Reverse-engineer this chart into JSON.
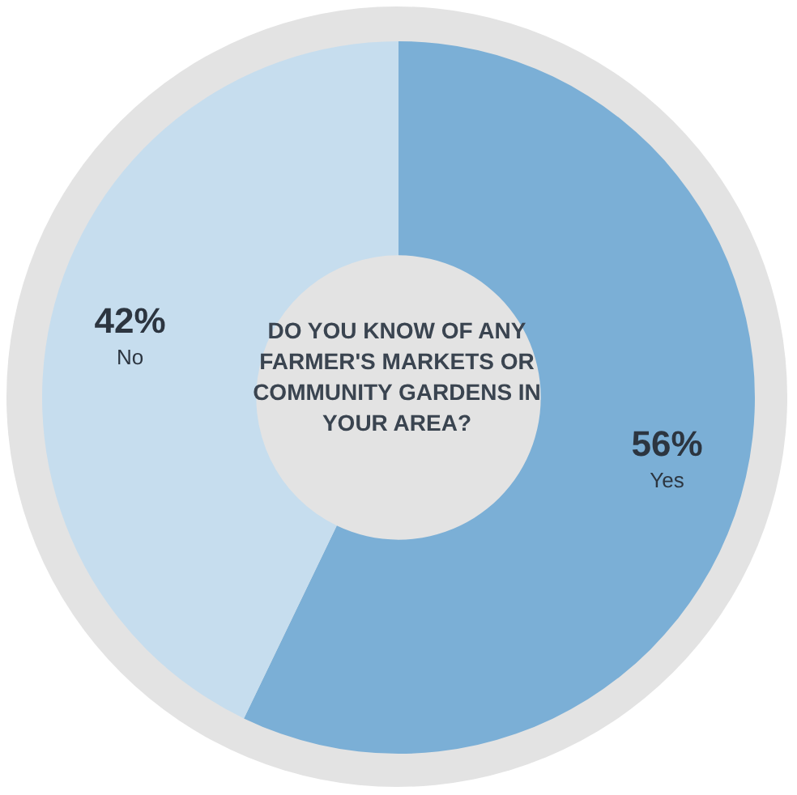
{
  "chart_data": {
    "type": "donut",
    "title": "DO YOU KNOW OF ANY FARMER'S MARKETS OR COMMUNITY GARDENS IN YOUR AREA?",
    "categories": [
      "Yes",
      "No"
    ],
    "values": [
      56,
      42
    ],
    "value_labels": [
      "56%",
      "42%"
    ],
    "colors": [
      "#7bafd6",
      "#c6ddee"
    ],
    "legend": false
  }
}
